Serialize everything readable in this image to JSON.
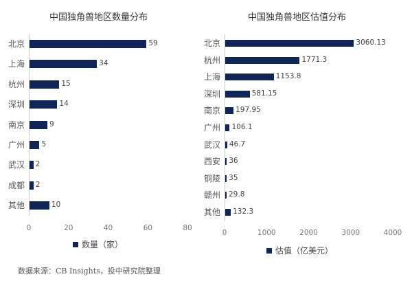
{
  "chart_data": [
    {
      "type": "bar",
      "orientation": "horizontal",
      "title": "中国独角兽地区数量分布",
      "categories": [
        "北京",
        "上海",
        "杭州",
        "深圳",
        "南京",
        "广州",
        "武汉",
        "成都",
        "其他"
      ],
      "values": [
        59,
        34,
        15,
        14,
        9,
        5,
        2,
        2,
        10
      ],
      "value_labels": [
        "59",
        "34",
        "15",
        "14",
        "9",
        "5",
        "2",
        "2",
        "10"
      ],
      "xlabel": "",
      "ylabel": "",
      "xlim": [
        0,
        80
      ],
      "xticks": [
        "0",
        "20",
        "40",
        "60",
        "80"
      ],
      "legend": [
        "数量（家）"
      ],
      "legend_position": "bottom",
      "grid": false,
      "color": "#0f2557"
    },
    {
      "type": "bar",
      "orientation": "horizontal",
      "title": "中国独角兽地区估值分布",
      "categories": [
        "北京",
        "杭州",
        "上海",
        "深圳",
        "南京",
        "广州",
        "武汉",
        "西安",
        "铜陵",
        "赣州",
        "其他"
      ],
      "values": [
        3060.13,
        1771.3,
        1153.8,
        581.15,
        197.95,
        106.1,
        46.7,
        36,
        35,
        29.8,
        132.3
      ],
      "value_labels": [
        "3060.13",
        "1771.3",
        "1153.8",
        "581.15",
        "197.95",
        "106.1",
        "46.7",
        "36",
        "35",
        "29.8",
        "132.3"
      ],
      "xlabel": "",
      "ylabel": "",
      "xlim": [
        0,
        4000
      ],
      "xticks": [
        "0",
        "1000",
        "2000",
        "3000",
        "4000"
      ],
      "legend": [
        "估值（亿美元）"
      ],
      "legend_position": "bottom",
      "grid": false,
      "color": "#0f2557"
    }
  ],
  "footer": {
    "source": "数据来源：CB Insights，投中研究院整理"
  }
}
